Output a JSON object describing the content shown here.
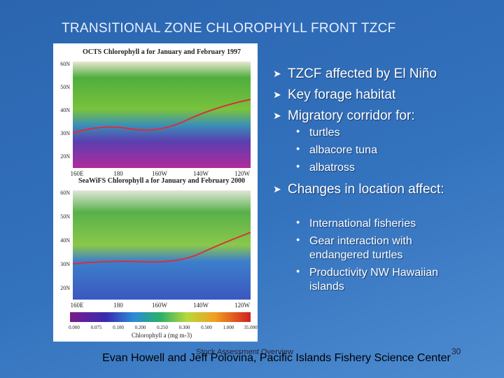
{
  "slide": {
    "title": "TRANSITIONAL ZONE CHLOROPHYLL FRONT TZCF",
    "footer": {
      "center_note": "Stock Assessment Overview",
      "page_number": "30",
      "credit": "Evan Howell and Jeff Polovina, Pacific Islands Fishery Science Center"
    }
  },
  "figure": {
    "maps": [
      {
        "title": "OCTS Chlorophyll a for January and February 1997",
        "lat_labels": [
          "60N",
          "50N",
          "40N",
          "30N",
          "20N"
        ],
        "lon_labels": [
          "160E",
          "180",
          "160W",
          "140W",
          "120W"
        ]
      },
      {
        "title": "SeaWiFS Chlorophyll a for January and February 2000",
        "lat_labels": [
          "60N",
          "50N",
          "40N",
          "30N",
          "20N"
        ],
        "lon_labels": [
          "160E",
          "180",
          "160W",
          "140W",
          "120W"
        ]
      }
    ],
    "colorbar": {
      "ticks": [
        "0.000",
        "0.075",
        "0.100",
        "0.200",
        "0.250",
        "0.300",
        "0.500",
        "1.000",
        "35.000"
      ],
      "label": "Chlorophyll a (mg m-3)"
    }
  },
  "bullets": [
    {
      "text": "TZCF affected by El Niño"
    },
    {
      "text": "Key forage habitat"
    },
    {
      "text": "Migratory corridor for:",
      "sub": [
        "turtles",
        "albacore tuna",
        "albatross"
      ]
    },
    {
      "text": "Changes in location affect:",
      "sub": [
        "International fisheries",
        "Gear interaction with endangered turtles",
        "Productivity NW Hawaiian islands"
      ]
    }
  ]
}
